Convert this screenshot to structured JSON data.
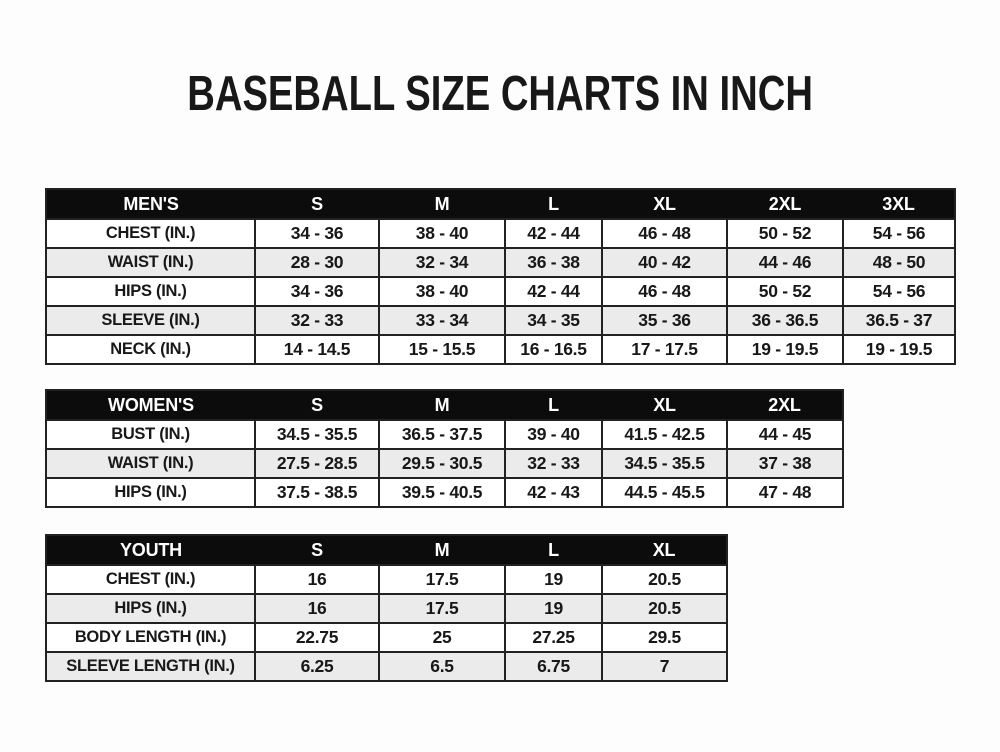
{
  "title": "BASEBALL SIZE CHARTS IN INCH",
  "colors": {
    "page_bg": "#fdfdfd",
    "header_bg": "#0c0c0c",
    "header_text": "#ffffff",
    "row_stripe": "#ebebeb",
    "border": "#222222",
    "text": "#181818"
  },
  "tables": [
    {
      "id": "mens",
      "header": [
        "MEN'S",
        "S",
        "M",
        "L",
        "XL",
        "2XL",
        "3XL"
      ],
      "rows": [
        {
          "label": "CHEST (IN.)",
          "values": [
            "34 - 36",
            "38 - 40",
            "42 - 44",
            "46 - 48",
            "50 - 52",
            "54 - 56"
          ]
        },
        {
          "label": "WAIST (IN.)",
          "values": [
            "28 - 30",
            "32 - 34",
            "36 - 38",
            "40 - 42",
            "44 - 46",
            "48 - 50"
          ]
        },
        {
          "label": "HIPS (IN.)",
          "values": [
            "34 - 36",
            "38 - 40",
            "42 - 44",
            "46 - 48",
            "50 - 52",
            "54 - 56"
          ]
        },
        {
          "label": "SLEEVE (IN.)",
          "values": [
            "32 - 33",
            "33 - 34",
            "34 - 35",
            "35 - 36",
            "36 - 36.5",
            "36.5 - 37"
          ]
        },
        {
          "label": "NECK (IN.)",
          "values": [
            "14 - 14.5",
            "15 - 15.5",
            "16 - 16.5",
            "17 - 17.5",
            "19 - 19.5",
            "19 - 19.5"
          ]
        }
      ]
    },
    {
      "id": "womens",
      "header": [
        "WOMEN'S",
        "S",
        "M",
        "L",
        "XL",
        "2XL"
      ],
      "rows": [
        {
          "label": "BUST (IN.)",
          "values": [
            "34.5 - 35.5",
            "36.5 - 37.5",
            "39 - 40",
            "41.5 - 42.5",
            "44 - 45"
          ]
        },
        {
          "label": "WAIST (IN.)",
          "values": [
            "27.5 - 28.5",
            "29.5 - 30.5",
            "32 - 33",
            "34.5 - 35.5",
            "37 - 38"
          ]
        },
        {
          "label": "HIPS (IN.)",
          "values": [
            "37.5 - 38.5",
            "39.5 - 40.5",
            "42 - 43",
            "44.5 - 45.5",
            "47 - 48"
          ]
        }
      ]
    },
    {
      "id": "youth",
      "header": [
        "YOUTH",
        "S",
        "M",
        "L",
        "XL"
      ],
      "rows": [
        {
          "label": "CHEST (IN.)",
          "values": [
            "16",
            "17.5",
            "19",
            "20.5"
          ]
        },
        {
          "label": "HIPS (IN.)",
          "values": [
            "16",
            "17.5",
            "19",
            "20.5"
          ]
        },
        {
          "label": "BODY LENGTH (IN.)",
          "values": [
            "22.75",
            "25",
            "27.25",
            "29.5"
          ]
        },
        {
          "label": "SLEEVE LENGTH (IN.)",
          "values": [
            "6.25",
            "6.5",
            "6.75",
            "7"
          ]
        }
      ]
    }
  ]
}
